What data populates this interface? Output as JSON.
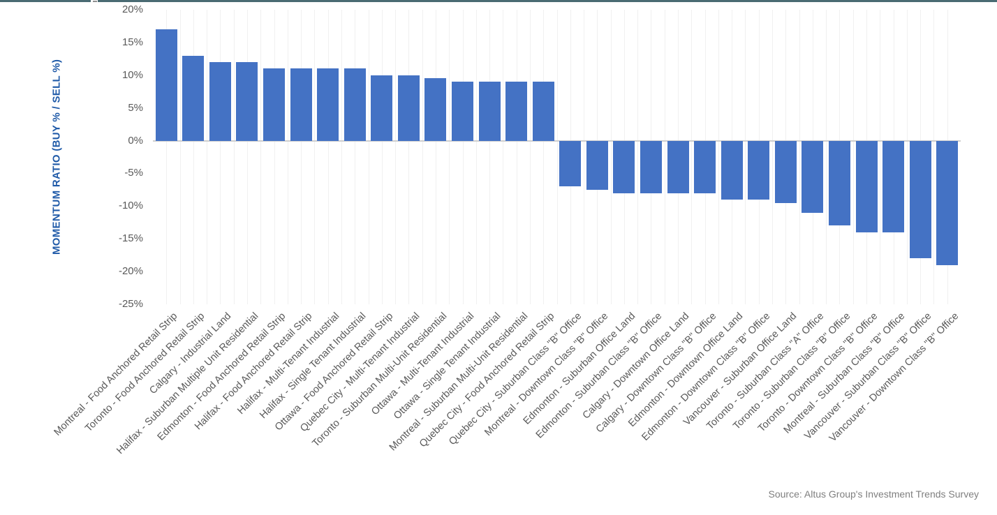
{
  "page": {
    "top_border_color": "#4A6B73",
    "background_color": "#FFFFFF"
  },
  "colors": {
    "bar": "#4472C4",
    "axis_title": "#1F5AA8",
    "tick_label": "#595959",
    "category_label": "#595959",
    "gridline": "#F0F0F0",
    "zero_line": "#CFCFCF",
    "source_text": "#7F7F7F"
  },
  "chart_data": {
    "type": "bar",
    "title": "",
    "xlabel": "",
    "ylabel": "MOMENTUM RATIO (BUY % / SELL %)",
    "ylim": [
      -25,
      20
    ],
    "ytick_values": [
      20,
      15,
      10,
      5,
      0,
      -5,
      -10,
      -15,
      -20,
      -25
    ],
    "ytick_labels": [
      "20%",
      "15%",
      "10%",
      "5%",
      "0%",
      "-5%",
      "-10%",
      "-15%",
      "-20%",
      "-25%"
    ],
    "grid": "vertical-only",
    "legend_position": "none",
    "bar_color": "#4472C4",
    "value_unit": "%",
    "categories": [
      "Montreal - Food Anchored Retail Strip",
      "Toronto - Food Anchored Retail Strip",
      "Calgary - Industrial Land",
      "Halifax - Suburban Multiple Unit Residential",
      "Edmonton - Food Anchored Retail Strip",
      "Halifax - Food Anchored Retail Strip",
      "Halifax - Multi-Tenant Industrial",
      "Halifax - Single Tenant Industrial",
      "Ottawa - Food Anchored Retail Strip",
      "Quebec City - Multi-Tenant Industrial",
      "Toronto - Suburban Multi-Unit Residential",
      "Ottawa - Multi-Tenant Industrial",
      "Ottawa - Single Tenant Industrial",
      "Montreal - Suburban Multi-Unit Residential",
      "Quebec City - Food Anchored Retail Strip",
      "Quebec City - Suburban Class \"B\" Office",
      "Montreal - Downtown Class \"B\" Office",
      "Edmonton - Suburban Office Land",
      "Edmonton - Suburban Class \"B\" Office",
      "Calgary - Downtown Office Land",
      "Calgary - Downtown Class \"B\" Office",
      "Edmonton - Downtown Office Land",
      "Edmonton - Downtown Class \"B\" Office",
      "Vancouver - Suburban Office Land",
      "Toronto - Suburban Class \"A\" Office",
      "Toronto - Suburban Class \"B\" Office",
      "Toronto - Downtown Class \"B\" Office",
      "Montreal - Suburban Class \"B\" Office",
      "Vancouver - Suburban Class \"B\" Office",
      "Vancouver - Downtown Class \"B\" Office"
    ],
    "values": [
      17,
      13,
      12,
      12,
      11,
      11,
      11,
      11,
      10,
      10,
      9.5,
      9,
      9,
      9,
      9,
      -7,
      -7.5,
      -8,
      -8,
      -8,
      -8,
      -9,
      -9,
      -9.5,
      -11,
      -13,
      -14,
      -14,
      -18,
      -19
    ],
    "source_note": "Source: Altus Group's Investment Trends Survey"
  }
}
